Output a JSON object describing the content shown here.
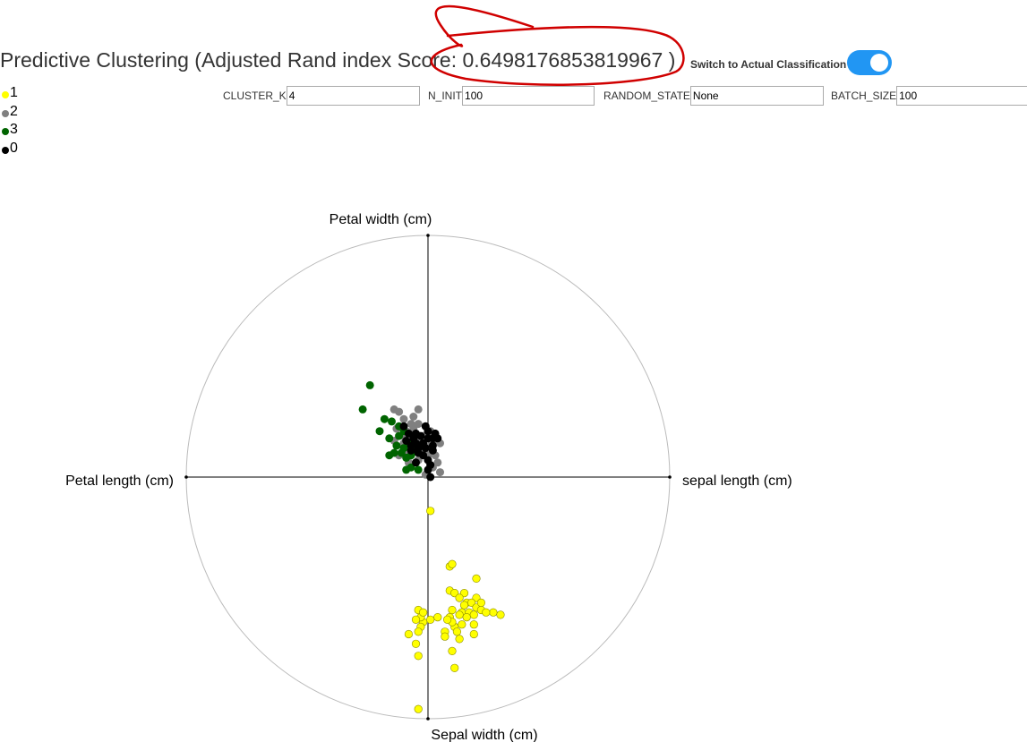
{
  "header": {
    "title": "Predictive Clustering (Adjusted Rand index Score: 0.6498176853819967 )",
    "toggle_label": "Switch to Actual Classification",
    "toggle_on": true,
    "accent_color": "#2196f3"
  },
  "legend": [
    {
      "label": "1",
      "color": "#ffff00"
    },
    {
      "label": "2",
      "color": "#808080"
    },
    {
      "label": "3",
      "color": "#006400"
    },
    {
      "label": "0",
      "color": "#000000"
    }
  ],
  "params": [
    {
      "label": "CLUSTER_K",
      "value": "4"
    },
    {
      "label": "N_INIT",
      "value": "100"
    },
    {
      "label": "RANDOM_STATE",
      "value": "None"
    },
    {
      "label": "BATCH_SIZE",
      "value": "100"
    }
  ],
  "annotation": {
    "shape": "freehand-ellipse",
    "color": "#d00000"
  },
  "chart_data": {
    "type": "scatter",
    "subtype": "radial-projection",
    "axes": {
      "top": "Petal width (cm)",
      "right": "sepal length (cm)",
      "bottom": "Sepal width (cm)",
      "left": "Petal length (cm)"
    },
    "xlim": [
      -1,
      1
    ],
    "ylim": [
      -1,
      1
    ],
    "series": [
      {
        "name": "1",
        "color": "#ffff00",
        "points": [
          [
            0.01,
            -0.14
          ],
          [
            0.09,
            -0.37
          ],
          [
            0.1,
            -0.36
          ],
          [
            0.2,
            -0.42
          ],
          [
            0.09,
            -0.47
          ],
          [
            0.11,
            -0.48
          ],
          [
            0.15,
            -0.48
          ],
          [
            0.2,
            -0.5
          ],
          [
            0.13,
            -0.5
          ],
          [
            0.16,
            -0.52
          ],
          [
            0.18,
            -0.52
          ],
          [
            0.27,
            -0.56
          ],
          [
            0.3,
            -0.57
          ],
          [
            0.2,
            -0.54
          ],
          [
            0.22,
            -0.55
          ],
          [
            0.15,
            -0.53
          ],
          [
            0.1,
            -0.55
          ],
          [
            0.09,
            -0.58
          ],
          [
            0.04,
            -0.58
          ],
          [
            0.01,
            -0.59
          ],
          [
            0.14,
            -0.56
          ],
          [
            0.17,
            -0.56
          ],
          [
            0.19,
            -0.57
          ],
          [
            0.24,
            -0.56
          ],
          [
            0.22,
            -0.52
          ],
          [
            0.13,
            -0.57
          ],
          [
            -0.02,
            -0.6
          ],
          [
            -0.03,
            -0.58
          ],
          [
            -0.05,
            -0.59
          ],
          [
            -0.03,
            -0.62
          ],
          [
            -0.08,
            -0.65
          ],
          [
            -0.04,
            -0.64
          ],
          [
            0.11,
            -0.62
          ],
          [
            0.12,
            -0.64
          ],
          [
            0.19,
            -0.65
          ],
          [
            0.1,
            -0.6
          ],
          [
            0.07,
            -0.64
          ],
          [
            -0.05,
            -0.69
          ],
          [
            -0.04,
            -0.74
          ],
          [
            0.1,
            -0.72
          ],
          [
            0.13,
            -0.67
          ],
          [
            -0.04,
            -0.55
          ],
          [
            0.16,
            -0.58
          ],
          [
            0.07,
            -0.66
          ],
          [
            -0.02,
            -0.56
          ],
          [
            0.19,
            -0.61
          ],
          [
            0.14,
            -0.61
          ],
          [
            0.08,
            -0.59
          ],
          [
            -0.04,
            -0.96
          ],
          [
            0.11,
            -0.79
          ]
        ]
      },
      {
        "name": "2",
        "color": "#808080",
        "points": [
          [
            -0.14,
            0.28
          ],
          [
            -0.12,
            0.27
          ],
          [
            -0.04,
            0.28
          ],
          [
            -0.06,
            0.25
          ],
          [
            -0.1,
            0.24
          ],
          [
            -0.04,
            0.22
          ],
          [
            -0.13,
            0.2
          ],
          [
            -0.09,
            0.19
          ],
          [
            -0.06,
            0.2
          ],
          [
            0.01,
            0.19
          ],
          [
            -0.02,
            0.17
          ],
          [
            -0.14,
            0.15
          ],
          [
            -0.1,
            0.14
          ],
          [
            -0.04,
            0.15
          ],
          [
            0.03,
            0.15
          ],
          [
            -0.06,
            0.12
          ],
          [
            -0.09,
            0.1
          ],
          [
            0.0,
            0.09
          ],
          [
            0.03,
            0.09
          ],
          [
            -0.04,
            0.07
          ],
          [
            0.01,
            0.05
          ],
          [
            0.05,
            0.02
          ],
          [
            0.02,
            0.04
          ],
          [
            -0.12,
            0.09
          ],
          [
            -0.08,
            0.06
          ],
          [
            0.04,
            0.06
          ],
          [
            -0.03,
            0.1
          ],
          [
            0.01,
            0.13
          ],
          [
            0.05,
            0.14
          ],
          [
            -0.01,
            0.01
          ],
          [
            -0.1,
            0.17
          ],
          [
            -0.07,
            0.22
          ]
        ]
      },
      {
        "name": "3",
        "color": "#006400",
        "points": [
          [
            -0.24,
            0.38
          ],
          [
            -0.27,
            0.28
          ],
          [
            -0.18,
            0.24
          ],
          [
            -0.2,
            0.19
          ],
          [
            -0.15,
            0.23
          ],
          [
            -0.12,
            0.21
          ],
          [
            -0.16,
            0.16
          ],
          [
            -0.12,
            0.17
          ],
          [
            -0.14,
            0.1
          ],
          [
            -0.16,
            0.09
          ],
          [
            -0.1,
            0.12
          ],
          [
            -0.09,
            0.08
          ],
          [
            -0.07,
            0.04
          ],
          [
            -0.09,
            0.03
          ],
          [
            -0.04,
            0.03
          ],
          [
            -0.07,
            0.09
          ],
          [
            -0.1,
            0.19
          ],
          [
            -0.13,
            0.13
          ],
          [
            -0.11,
            0.1
          ],
          [
            -0.05,
            0.11
          ],
          [
            -0.08,
            0.14
          ]
        ]
      },
      {
        "name": "0",
        "color": "#000000",
        "points": [
          [
            -0.01,
            0.21
          ],
          [
            0.0,
            0.19
          ],
          [
            -0.05,
            0.18
          ],
          [
            -0.03,
            0.17
          ],
          [
            -0.08,
            0.18
          ],
          [
            -0.06,
            0.16
          ],
          [
            -0.09,
            0.15
          ],
          [
            -0.05,
            0.14
          ],
          [
            0.0,
            0.16
          ],
          [
            0.02,
            0.16
          ],
          [
            0.04,
            0.16
          ],
          [
            0.02,
            0.13
          ],
          [
            -0.01,
            0.12
          ],
          [
            -0.04,
            0.12
          ],
          [
            -0.07,
            0.13
          ],
          [
            -0.02,
            0.09
          ],
          [
            0.0,
            0.07
          ],
          [
            0.01,
            0.0
          ],
          [
            0.0,
            0.03
          ],
          [
            -0.04,
            0.1
          ],
          [
            0.03,
            0.18
          ],
          [
            -0.07,
            0.11
          ],
          [
            -0.02,
            0.14
          ],
          [
            -0.05,
            0.06
          ],
          [
            0.02,
            0.11
          ],
          [
            0.01,
            0.05
          ],
          [
            -0.06,
            0.16
          ],
          [
            -0.1,
            0.21
          ]
        ]
      }
    ]
  }
}
